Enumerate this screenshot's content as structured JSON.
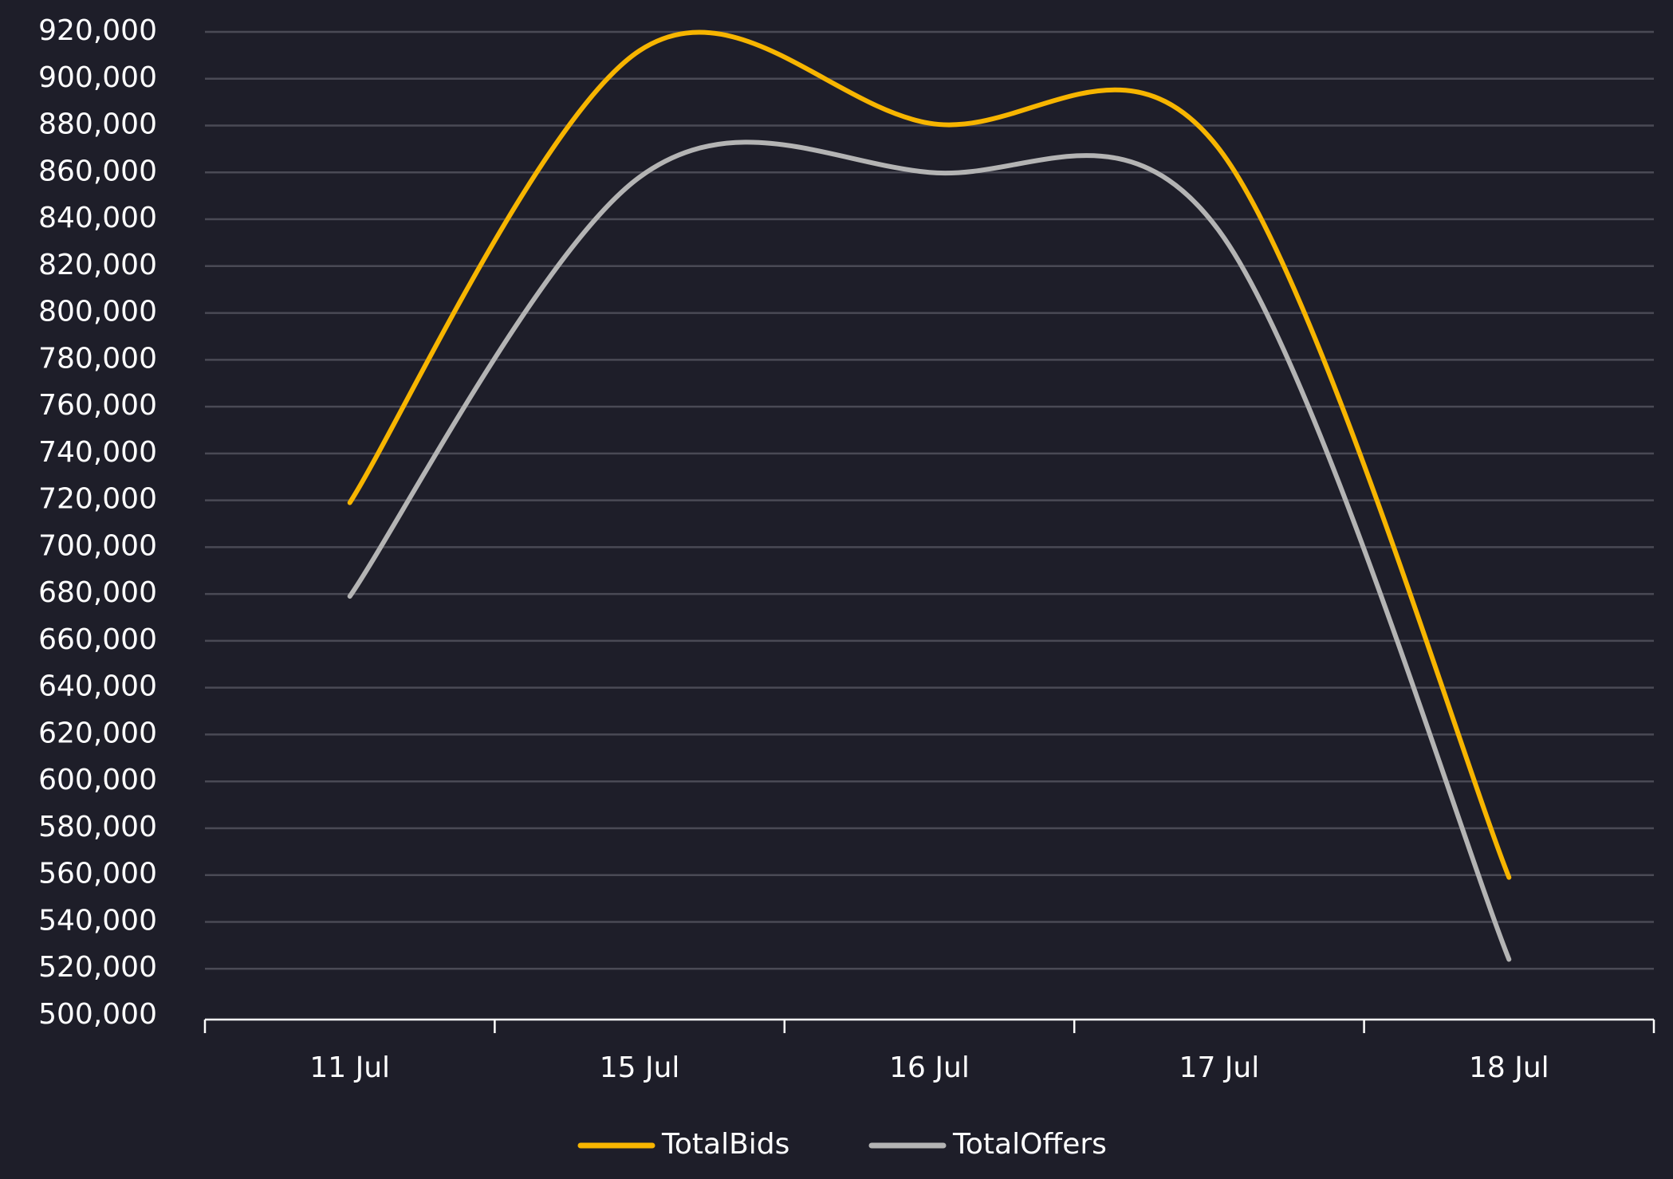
{
  "chart_data": {
    "type": "line",
    "categories": [
      "11 Jul",
      "15 Jul",
      "16 Jul",
      "17 Jul",
      "18 Jul"
    ],
    "series": [
      {
        "name": "TotalBids",
        "color": "#f7b500",
        "values": [
          719000,
          912000,
          881000,
          870000,
          559000
        ]
      },
      {
        "name": "TotalOffers",
        "color": "#b4b4b4",
        "values": [
          679000,
          858000,
          860000,
          835000,
          524000
        ]
      }
    ],
    "ylim": [
      500000,
      920000
    ],
    "yticks": [
      {
        "value": 500000,
        "label": "500,000"
      },
      {
        "value": 520000,
        "label": "520,000"
      },
      {
        "value": 540000,
        "label": "540,000"
      },
      {
        "value": 560000,
        "label": "560,000"
      },
      {
        "value": 580000,
        "label": "580,000"
      },
      {
        "value": 600000,
        "label": "600,000"
      },
      {
        "value": 620000,
        "label": "620,000"
      },
      {
        "value": 640000,
        "label": "640,000"
      },
      {
        "value": 660000,
        "label": "660,000"
      },
      {
        "value": 680000,
        "label": "680,000"
      },
      {
        "value": 700000,
        "label": "700,000"
      },
      {
        "value": 720000,
        "label": "720,000"
      },
      {
        "value": 740000,
        "label": "740,000"
      },
      {
        "value": 760000,
        "label": "760,000"
      },
      {
        "value": 780000,
        "label": "780,000"
      },
      {
        "value": 800000,
        "label": "800,000"
      },
      {
        "value": 820000,
        "label": "820,000"
      },
      {
        "value": 840000,
        "label": "840,000"
      },
      {
        "value": 860000,
        "label": "860,000"
      },
      {
        "value": 880000,
        "label": "880,000"
      },
      {
        "value": 900000,
        "label": "900,000"
      },
      {
        "value": 920000,
        "label": "920,000"
      }
    ],
    "grid": true,
    "legend": "bottom"
  }
}
